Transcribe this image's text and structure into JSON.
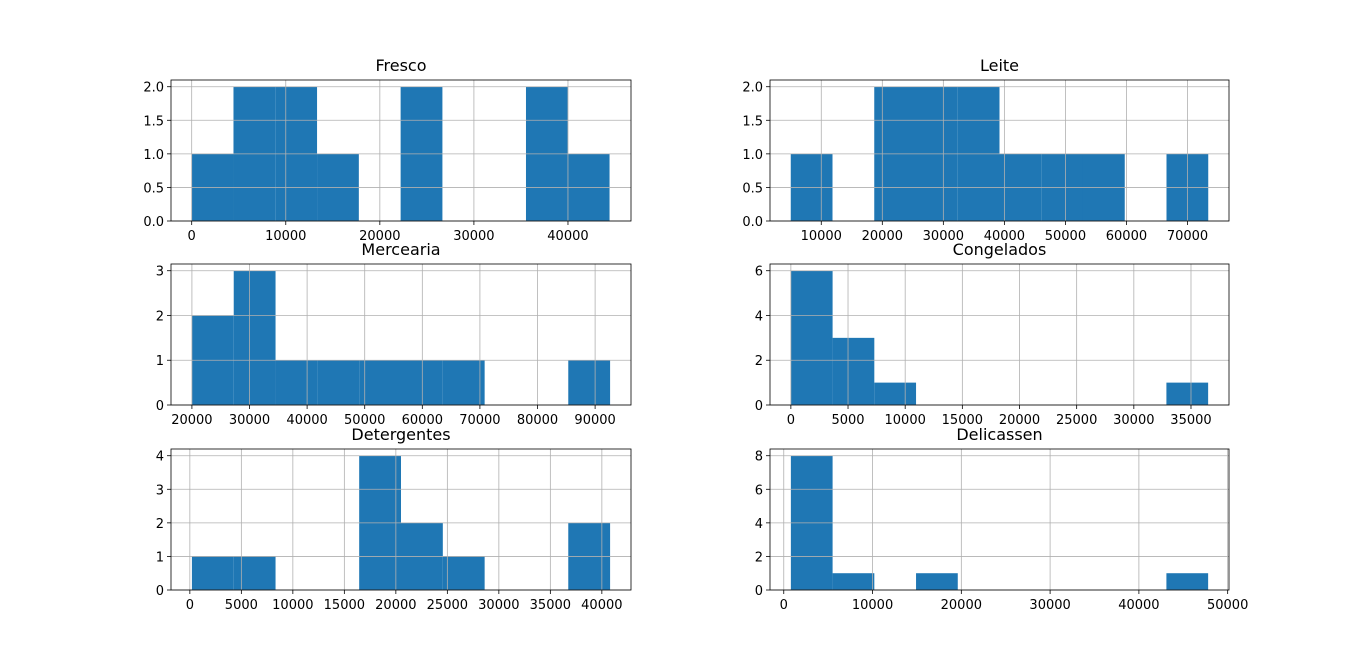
{
  "chart_data": [
    {
      "type": "bar",
      "title": "Fresco",
      "bin_edges": [
        0,
        4442,
        8884,
        13326,
        17768,
        22210,
        26652,
        31094,
        35536,
        39978,
        44420
      ],
      "counts": [
        1,
        2,
        2,
        1,
        0,
        2,
        0,
        0,
        2,
        1
      ],
      "xlim": [
        -2200,
        46700
      ],
      "ylim": [
        0,
        2.1
      ],
      "xticks": [
        0,
        10000,
        20000,
        30000,
        40000
      ],
      "xtick_labels": [
        "0",
        "10000",
        "20000",
        "30000",
        "40000"
      ],
      "yticks": [
        0,
        0.5,
        1,
        1.5,
        2
      ],
      "ytick_labels": [
        "0.0",
        "0.5",
        "1.0",
        "1.5",
        "2.0"
      ],
      "color": "#1f77b4",
      "grid": true
    },
    {
      "type": "bar",
      "title": "Leite",
      "bin_edges": [
        5000,
        11840,
        18680,
        25520,
        32360,
        39200,
        46040,
        52880,
        59720,
        66560,
        73400
      ],
      "counts": [
        1,
        0,
        2,
        2,
        2,
        1,
        1,
        1,
        0,
        1
      ],
      "xlim": [
        1600,
        76800
      ],
      "ylim": [
        0,
        2.1
      ],
      "xticks": [
        10000,
        20000,
        30000,
        40000,
        50000,
        60000,
        70000
      ],
      "xtick_labels": [
        "10000",
        "20000",
        "30000",
        "40000",
        "50000",
        "60000",
        "70000"
      ],
      "yticks": [
        0,
        0.5,
        1,
        1.5,
        2
      ],
      "ytick_labels": [
        "0.0",
        "0.5",
        "1.0",
        "1.5",
        "2.0"
      ],
      "color": "#1f77b4",
      "grid": true
    },
    {
      "type": "bar",
      "title": "Mercearia",
      "bin_edges": [
        20000,
        27260,
        34520,
        41780,
        49040,
        56300,
        63560,
        70820,
        78080,
        85340,
        92600
      ],
      "counts": [
        2,
        3,
        1,
        1,
        1,
        1,
        1,
        0,
        0,
        1
      ],
      "xlim": [
        16370,
        96230
      ],
      "ylim": [
        0,
        3.15
      ],
      "xticks": [
        20000,
        30000,
        40000,
        50000,
        60000,
        70000,
        80000,
        90000
      ],
      "xtick_labels": [
        "20000",
        "30000",
        "40000",
        "50000",
        "60000",
        "70000",
        "80000",
        "90000"
      ],
      "yticks": [
        0,
        1,
        2,
        3
      ],
      "ytick_labels": [
        "0",
        "1",
        "2",
        "3"
      ],
      "color": "#1f77b4",
      "grid": true
    },
    {
      "type": "bar",
      "title": "Congelados",
      "bin_edges": [
        0,
        3650,
        7300,
        10950,
        14600,
        18250,
        21900,
        25550,
        29200,
        32850,
        36500
      ],
      "counts": [
        6,
        3,
        1,
        0,
        0,
        0,
        0,
        0,
        0,
        1
      ],
      "xlim": [
        -1825,
        38325
      ],
      "ylim": [
        0,
        6.3
      ],
      "xticks": [
        0,
        5000,
        10000,
        15000,
        20000,
        25000,
        30000,
        35000
      ],
      "xtick_labels": [
        "0",
        "5000",
        "10000",
        "15000",
        "20000",
        "25000",
        "30000",
        "35000"
      ],
      "yticks": [
        0,
        2,
        4,
        6
      ],
      "ytick_labels": [
        "0",
        "2",
        "4",
        "6"
      ],
      "color": "#1f77b4",
      "grid": true
    },
    {
      "type": "bar",
      "title": "Detergentes",
      "bin_edges": [
        200,
        4260,
        8320,
        12380,
        16440,
        20500,
        24560,
        28620,
        32680,
        36740,
        40800
      ],
      "counts": [
        1,
        1,
        0,
        0,
        4,
        2,
        1,
        0,
        0,
        2
      ],
      "xlim": [
        -1830,
        42830
      ],
      "ylim": [
        0,
        4.2
      ],
      "xticks": [
        0,
        5000,
        10000,
        15000,
        20000,
        25000,
        30000,
        35000,
        40000
      ],
      "xtick_labels": [
        "0",
        "5000",
        "10000",
        "15000",
        "20000",
        "25000",
        "30000",
        "35000",
        "40000"
      ],
      "yticks": [
        0,
        1,
        2,
        3,
        4
      ],
      "ytick_labels": [
        "0",
        "1",
        "2",
        "3",
        "4"
      ],
      "color": "#1f77b4",
      "grid": true
    },
    {
      "type": "bar",
      "title": "Delicassen",
      "bin_edges": [
        800,
        5500,
        10200,
        14900,
        19600,
        24300,
        29000,
        33700,
        38400,
        43100,
        47800
      ],
      "counts": [
        8,
        1,
        0,
        1,
        0,
        0,
        0,
        0,
        0,
        1
      ],
      "xlim": [
        -1550,
        50150
      ],
      "ylim": [
        0,
        8.4
      ],
      "xticks": [
        0,
        10000,
        20000,
        30000,
        40000,
        50000
      ],
      "xtick_labels": [
        "0",
        "10000",
        "20000",
        "30000",
        "40000",
        "50000"
      ],
      "yticks": [
        0,
        2,
        4,
        6,
        8
      ],
      "ytick_labels": [
        "0",
        "2",
        "4",
        "6",
        "8"
      ],
      "color": "#1f77b4",
      "grid": true
    }
  ]
}
